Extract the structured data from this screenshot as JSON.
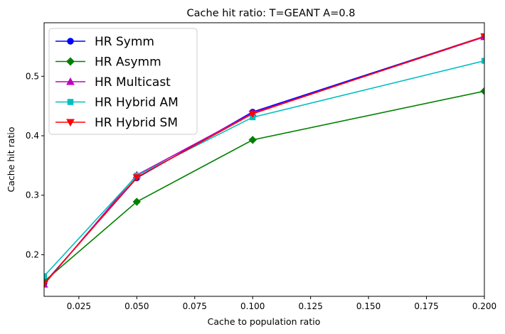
{
  "chart_data": {
    "type": "line",
    "title": "Cache hit ratio: T=GEANT A=0.8",
    "xlabel": "Cache to population ratio",
    "ylabel": "Cache hit ratio",
    "x": [
      0.01,
      0.05,
      0.1,
      0.2
    ],
    "xlim": [
      0.01,
      0.2
    ],
    "ylim": [
      0.13,
      0.59
    ],
    "xticks": [
      0.025,
      0.05,
      0.075,
      0.1,
      0.125,
      0.15,
      0.175,
      0.2
    ],
    "xtick_labels": [
      "0.025",
      "0.050",
      "0.075",
      "0.100",
      "0.125",
      "0.150",
      "0.175",
      "0.200"
    ],
    "yticks": [
      0.2,
      0.3,
      0.4,
      0.5
    ],
    "ytick_labels": [
      "0.2",
      "0.3",
      "0.4",
      "0.5"
    ],
    "grid": false,
    "legend_position": "top-left",
    "series": [
      {
        "name": "HR Symm",
        "color": "#0000ff",
        "marker": "circle",
        "values": [
          0.152,
          0.329,
          0.44,
          0.567
        ]
      },
      {
        "name": "HR Asymm",
        "color": "#008000",
        "marker": "diamond",
        "values": [
          0.155,
          0.289,
          0.393,
          0.475
        ]
      },
      {
        "name": "HR Multicast",
        "color": "#bf00bf",
        "marker": "triangle-up",
        "values": [
          0.15,
          0.334,
          0.438,
          0.566
        ]
      },
      {
        "name": "HR Hybrid AM",
        "color": "#00bfbf",
        "marker": "square",
        "values": [
          0.164,
          0.333,
          0.431,
          0.526
        ]
      },
      {
        "name": "HR Hybrid SM",
        "color": "#ff0000",
        "marker": "triangle-down",
        "values": [
          0.151,
          0.33,
          0.437,
          0.567
        ]
      }
    ]
  }
}
